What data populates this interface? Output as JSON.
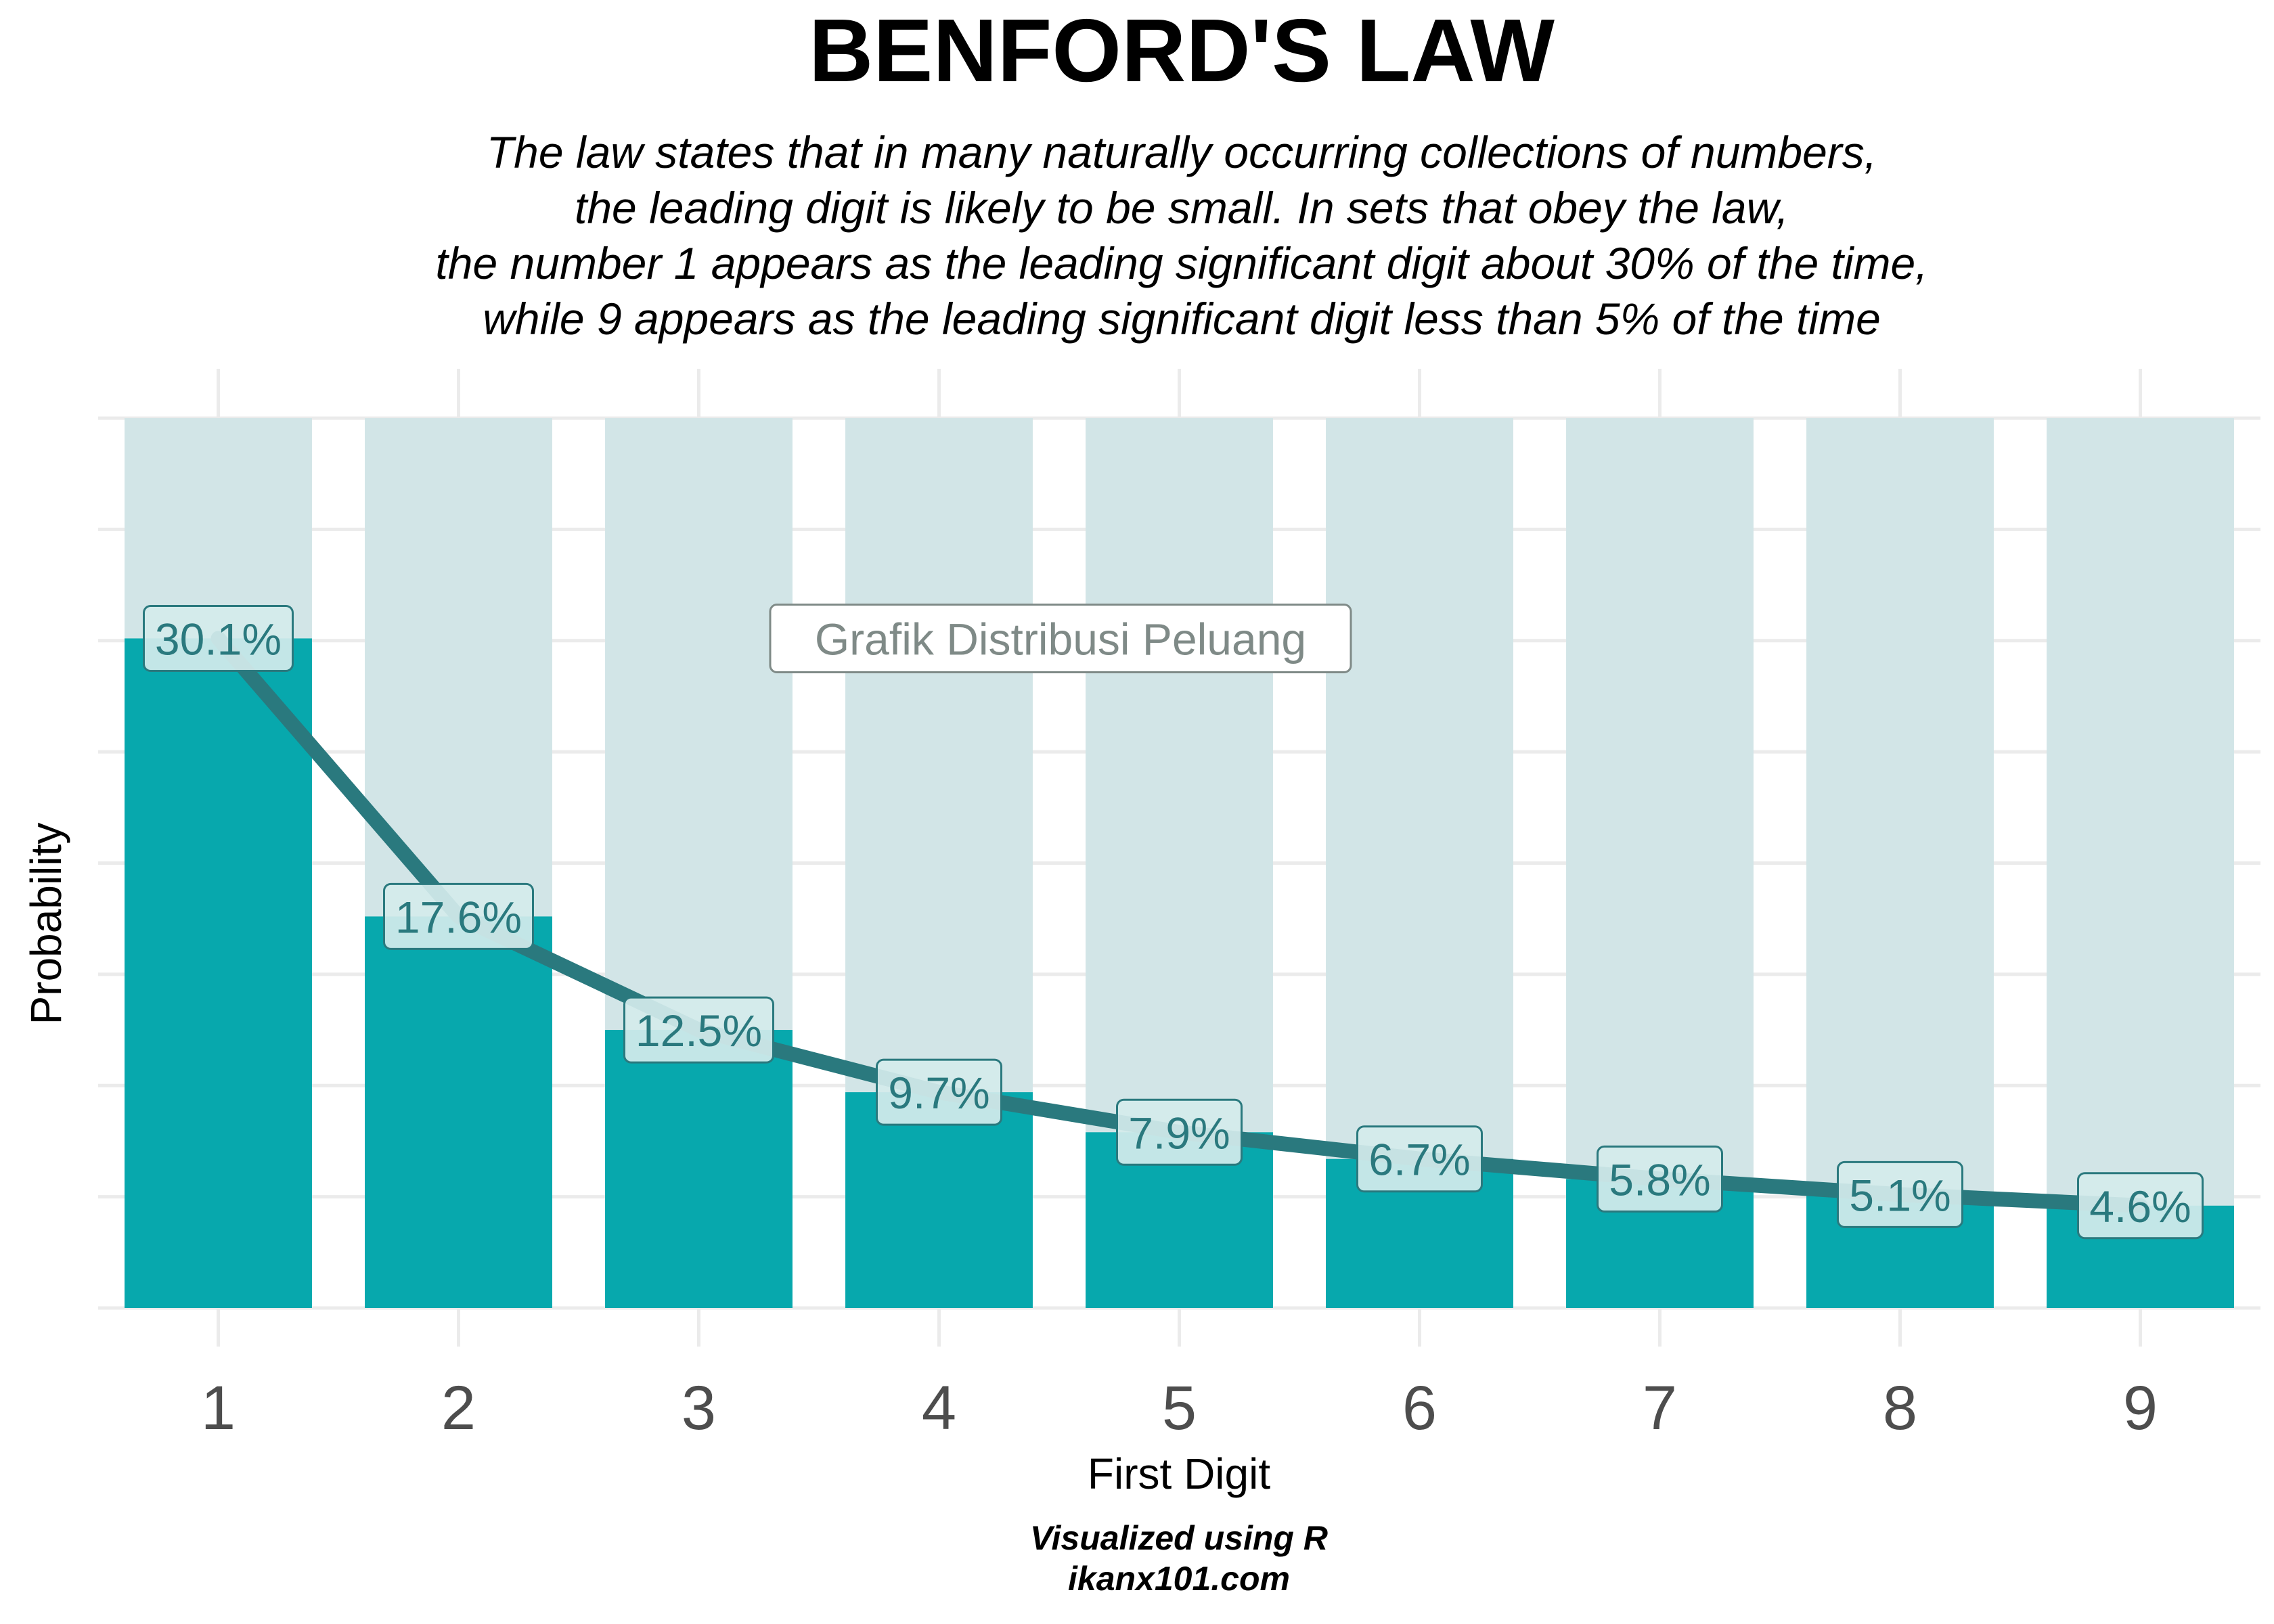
{
  "chart_data": {
    "type": "bar",
    "title": "BENFORD'S LAW",
    "subtitle": [
      "The law states that in many naturally occurring collections of numbers,",
      "the leading digit is likely to be small. In sets that obey the law,",
      "the number 1 appears as the leading significant digit about 30% of the time,",
      "while 9 appears as the leading significant digit less than 5% of the time"
    ],
    "xlabel": "First Digit",
    "ylabel": "Probability",
    "categories": [
      "1",
      "2",
      "3",
      "4",
      "5",
      "6",
      "7",
      "8",
      "9"
    ],
    "values": [
      0.301,
      0.176,
      0.125,
      0.097,
      0.079,
      0.067,
      0.058,
      0.051,
      0.046
    ],
    "labels": [
      "30.1%",
      "17.6%",
      "12.5%",
      "9.7%",
      "7.9%",
      "6.7%",
      "5.8%",
      "5.1%",
      "4.6%"
    ],
    "background_value": 0.4,
    "ylim": [
      0,
      0.4
    ],
    "annotation": "Grafik Distribusi Peluang",
    "caption": [
      "Visualized using R",
      "ikanx101.com"
    ],
    "grid": true,
    "y_tick_labels_shown": false,
    "colors": {
      "bar": "#07a8ad",
      "background_bar": "#d2e5e7",
      "line": "#2a797e",
      "label_text": "#2a797e",
      "label_fill": "#d4ebec",
      "annotation_text": "#7f8a87",
      "grid": "#ebebeb"
    }
  }
}
